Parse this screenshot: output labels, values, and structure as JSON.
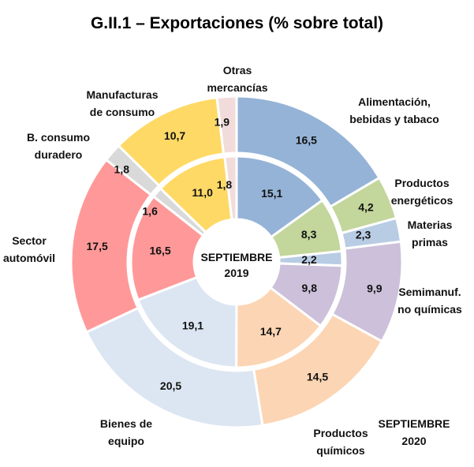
{
  "chart_data": {
    "type": "pie",
    "title": "G.II.1 – Exportaciones (% sobre total)",
    "categories": [
      "Alimentación, bebidas y tabaco",
      "Productos energéticos",
      "Materias primas",
      "Semimanuf. no químicas",
      "Productos químicos",
      "Bienes de equipo",
      "Sector automóvil",
      "B. consumo duradero",
      "Manufacturas de consumo",
      "Otras mercancías"
    ],
    "category_labels": [
      [
        "Alimentación,",
        "bebidas y tabaco"
      ],
      [
        "Productos",
        "energéticos"
      ],
      [
        "Materias",
        "primas"
      ],
      [
        "Semimanuf.",
        "no químicas"
      ],
      [
        "Productos",
        "químicos"
      ],
      [
        "Bienes de",
        "equipo"
      ],
      [
        "Sector",
        "automóvil"
      ],
      [
        "B. consumo",
        "duradero"
      ],
      [
        "Manufacturas",
        "de consumo"
      ],
      [
        "Otras",
        "mercancías"
      ]
    ],
    "colors": [
      "#95b3d7",
      "#c3d69b",
      "#b8cce4",
      "#ccc0da",
      "#fcd5b4",
      "#dce6f2",
      "#ff9999",
      "#d9d9d9",
      "#ffd966",
      "#f2dcdb"
    ],
    "series": [
      {
        "name": "SEPTIEMBRE 2019",
        "ring": "inner",
        "values": [
          15.1,
          8.3,
          2.2,
          9.8,
          14.7,
          19.1,
          16.5,
          1.6,
          11.0,
          1.8
        ],
        "labels": [
          "15,1",
          "8,3",
          "2,2",
          "9,8",
          "14,7",
          "19,1",
          "16,5",
          "1,6",
          "11,0",
          "1,8"
        ]
      },
      {
        "name": "SEPTIEMBRE 2020",
        "ring": "outer",
        "values": [
          16.5,
          4.2,
          2.3,
          9.9,
          14.5,
          20.5,
          17.5,
          1.8,
          10.7,
          1.9
        ],
        "labels": [
          "16,5",
          "4,2",
          "2,3",
          "9,9",
          "14,5",
          "20,5",
          "17,5",
          "1,8",
          "10,7",
          "1,9"
        ]
      }
    ],
    "center_label": [
      "SEPTIEMBRE",
      "2019"
    ],
    "outer_series_label": [
      "SEPTIEMBRE",
      "2020"
    ]
  }
}
